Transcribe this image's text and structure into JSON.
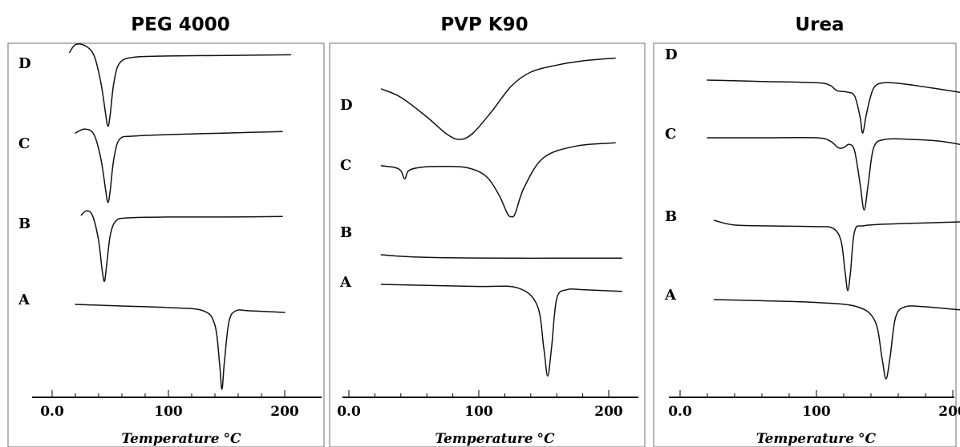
{
  "chart_data": [
    {
      "type": "line",
      "title": "PEG 4000",
      "xlabel": "Temperature",
      "xunit": "°C",
      "xticks": [
        "0.0",
        "100",
        "200"
      ],
      "xlim": [
        0,
        210
      ],
      "series": [
        {
          "name": "D",
          "x": [
            15,
            20,
            28,
            36,
            42,
            46,
            48,
            50,
            53,
            58,
            70,
            100,
            150,
            205
          ],
          "y": [
            2.0,
            4.5,
            4.2,
            1.0,
            -8.0,
            -18.0,
            -22.0,
            -18.0,
            -8.0,
            -1.5,
            0.4,
            0.8,
            1.0,
            1.2
          ]
        },
        {
          "name": "C",
          "x": [
            20,
            28,
            36,
            42,
            46,
            48,
            50,
            53,
            58,
            70,
            100,
            150,
            198
          ],
          "y": [
            0.5,
            1.8,
            0.0,
            -8.0,
            -18.0,
            -22.0,
            -18.0,
            -8.0,
            -1.5,
            -0.5,
            0.0,
            0.5,
            1.0
          ]
        },
        {
          "name": "B",
          "x": [
            25,
            30,
            35,
            40,
            43,
            45,
            47,
            50,
            55,
            65,
            100,
            150,
            198
          ],
          "y": [
            1.0,
            2.5,
            0.5,
            -8.0,
            -18.0,
            -22.0,
            -16.0,
            -6.0,
            -1.0,
            0.0,
            0.3,
            0.3,
            0.5
          ]
        },
        {
          "name": "A",
          "x": [
            20,
            60,
            100,
            130,
            140,
            144,
            146,
            148,
            152,
            158,
            170,
            200
          ],
          "y": [
            0.5,
            0.0,
            -0.5,
            -1.5,
            -6.0,
            -18.0,
            -26.0,
            -18.0,
            -5.0,
            -1.5,
            -1.5,
            -2.0
          ]
        }
      ]
    },
    {
      "type": "line",
      "title": "PVP K90",
      "xlabel": "Temperature",
      "xunit": "°C",
      "xticks": [
        "0.0",
        "100",
        "200"
      ],
      "xlim": [
        0,
        210
      ],
      "series": [
        {
          "name": "D",
          "x": [
            25,
            40,
            60,
            75,
            85,
            95,
            110,
            125,
            140,
            160,
            180,
            205
          ],
          "y": [
            0.0,
            -3.0,
            -10.0,
            -16.0,
            -18.0,
            -16.0,
            -8.0,
            1.0,
            6.0,
            8.5,
            10.0,
            11.0
          ]
        },
        {
          "name": "C",
          "x": [
            25,
            35,
            40,
            43,
            46,
            55,
            70,
            90,
            105,
            115,
            122,
            125,
            128,
            135,
            150,
            175,
            205
          ],
          "y": [
            0.5,
            0.0,
            -1.0,
            -3.5,
            -1.0,
            0.0,
            0.3,
            0.0,
            -2.5,
            -8.0,
            -14.0,
            -15.0,
            -14.0,
            -6.0,
            3.0,
            6.5,
            7.5
          ]
        },
        {
          "name": "B",
          "x": [
            25,
            35,
            50,
            70,
            100,
            130,
            160,
            210
          ],
          "y": [
            0.0,
            -1.5,
            -3.0,
            -4.0,
            -4.6,
            -4.8,
            -4.8,
            -4.8
          ]
        },
        {
          "name": "A",
          "x": [
            25,
            60,
            100,
            130,
            145,
            150,
            153,
            156,
            160,
            168,
            180,
            210
          ],
          "y": [
            0.0,
            -0.3,
            -0.6,
            -1.0,
            -6.0,
            -18.0,
            -26.0,
            -18.0,
            -4.0,
            -1.5,
            -1.5,
            -2.0
          ]
        }
      ]
    },
    {
      "type": "line",
      "title": "Urea",
      "xlabel": "Temperature",
      "xunit": "°C",
      "xticks": [
        "0.0",
        "100",
        "200"
      ],
      "xlim": [
        0,
        210
      ],
      "series": [
        {
          "name": "D",
          "x": [
            20,
            60,
            100,
            110,
            115,
            122,
            128,
            132,
            134,
            137,
            142,
            150,
            165,
            185,
            210
          ],
          "y": [
            0.0,
            -0.5,
            -1.0,
            -2.0,
            -4.0,
            -4.5,
            -6.0,
            -14.0,
            -20.0,
            -12.0,
            -3.0,
            -1.0,
            -1.5,
            -3.0,
            -5.0
          ]
        },
        {
          "name": "C",
          "x": [
            20,
            60,
            100,
            110,
            116,
            120,
            124,
            128,
            132,
            135,
            138,
            142,
            150,
            170,
            190,
            205
          ],
          "y": [
            0.0,
            0.0,
            0.0,
            -1.0,
            -3.0,
            -3.0,
            -2.0,
            -4.0,
            -14.0,
            -22.0,
            -14.0,
            -3.0,
            -0.5,
            -0.5,
            -1.0,
            -2.0
          ]
        },
        {
          "name": "B",
          "x": [
            25,
            40,
            70,
            100,
            112,
            118,
            121,
            123,
            125,
            128,
            135,
            160,
            205
          ],
          "y": [
            0.5,
            -1.0,
            -1.3,
            -1.5,
            -2.0,
            -6.0,
            -16.0,
            -22.0,
            -16.0,
            -3.0,
            -1.2,
            -0.6,
            0.0
          ]
        },
        {
          "name": "A",
          "x": [
            25,
            60,
            100,
            130,
            143,
            148,
            151,
            154,
            158,
            165,
            180,
            210
          ],
          "y": [
            0.0,
            -0.3,
            -0.8,
            -2.0,
            -6.0,
            -16.0,
            -22.0,
            -16.0,
            -5.0,
            -2.0,
            -2.0,
            -3.0
          ]
        }
      ]
    }
  ]
}
